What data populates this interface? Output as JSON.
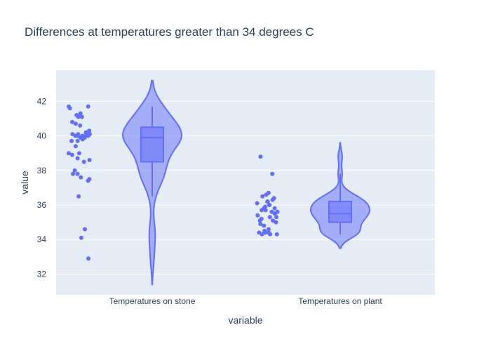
{
  "chart_data": {
    "type": "violin",
    "title": "Differences at temperatures greater than 34 degrees C",
    "xlabel": "variable",
    "ylabel": "value",
    "ylim": [
      30.8,
      43.8
    ],
    "yticks": [
      32,
      34,
      36,
      38,
      40,
      42
    ],
    "grid": true,
    "legend": "none",
    "colors": {
      "marker": "#636efa",
      "violin_fill": "rgba(99,110,250,0.5)",
      "plot_bg": "#e5ecf6",
      "grid": "#ffffff",
      "text": "#2a3f5f"
    },
    "categories": [
      {
        "name": "Temperatures on stone",
        "box": {
          "q1": 38.5,
          "median": 39.9,
          "q3": 40.5,
          "whisker_low": 36.5,
          "whisker_high": 41.7
        },
        "violin_extent": [
          31.4,
          43.2
        ],
        "points": [
          41.7,
          41.7,
          41.6,
          41.3,
          41.2,
          41.1,
          41.1,
          40.8,
          40.7,
          40.6,
          40.3,
          40.2,
          40.1,
          40.1,
          40.1,
          40.1,
          40.0,
          40.0,
          40.0,
          40.0,
          39.9,
          39.9,
          39.8,
          39.7,
          39.7,
          39.4,
          39.0,
          39.0,
          38.9,
          38.7,
          38.6,
          38.5,
          38.0,
          37.8,
          37.8,
          37.6,
          37.5,
          37.4,
          36.5,
          34.6,
          34.1,
          32.9
        ]
      },
      {
        "name": "Temperatures on plant",
        "box": {
          "q1": 35.0,
          "median": 35.5,
          "q3": 36.2,
          "whisker_low": 34.3,
          "whisker_high": 37.8
        },
        "violin_extent": [
          33.5,
          39.6
        ],
        "points": [
          38.8,
          37.8,
          36.7,
          36.6,
          36.5,
          36.4,
          36.3,
          36.2,
          36.2,
          36.2,
          36.1,
          36.0,
          36.0,
          35.9,
          35.8,
          35.8,
          35.7,
          35.7,
          35.6,
          35.6,
          35.5,
          35.5,
          35.4,
          35.3,
          35.3,
          35.2,
          35.1,
          35.1,
          35.0,
          34.9,
          34.8,
          34.6,
          34.5,
          34.4,
          34.4,
          34.4,
          34.3,
          34.3,
          34.3
        ]
      }
    ]
  }
}
